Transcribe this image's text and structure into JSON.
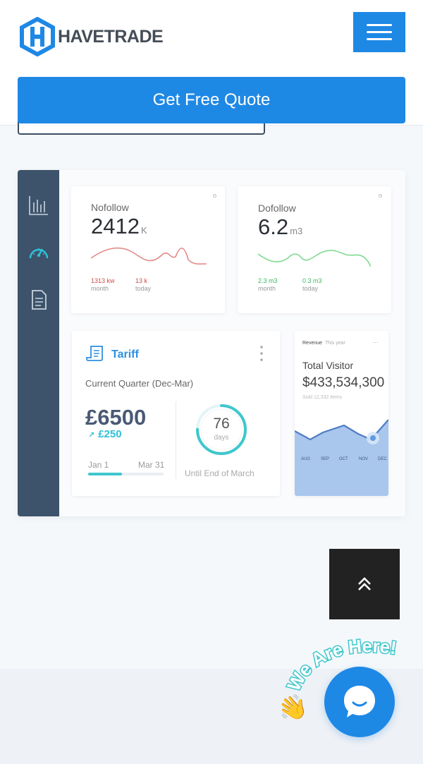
{
  "header": {
    "brand": "HAVETRADE",
    "logo_letter": "H",
    "cta_label": "Get Free Quote",
    "menu_icon": "hamburger-icon"
  },
  "dashboard": {
    "sidebar_icons": [
      "bar-chart-icon",
      "gauge-icon",
      "document-icon"
    ],
    "nofollow": {
      "title": "Nofollow",
      "value": "2412",
      "unit": "K",
      "stats": [
        {
          "value": "1313 kw",
          "label": "month"
        },
        {
          "value": "13 k",
          "label": "today"
        }
      ],
      "color": "#e28a8a"
    },
    "dofollow": {
      "title": "Dofollow",
      "value": "6.2",
      "unit": "m3",
      "stats": [
        {
          "value": "2.3 m3",
          "label": "month"
        },
        {
          "value": "0.3 m3",
          "label": "today"
        }
      ],
      "color": "#7fd98f"
    },
    "tariff": {
      "title": "Tariff",
      "period": "Current Quarter (Dec-Mar)",
      "price": "£6500",
      "delta": "£250",
      "from": "Jan 1",
      "to": "Mar 31",
      "days": "76",
      "days_label": "days",
      "until": "Until End of March",
      "progress": 0.45,
      "days_progress": 0.75
    },
    "revenue": {
      "header": "Revenue",
      "header_sub": "This year",
      "title": "Total Visitor",
      "value": "$433,534,300",
      "sold": "Sold 12,332 items",
      "months": [
        "AUG",
        "SEP",
        "OCT",
        "NOV",
        "DEC"
      ]
    }
  },
  "floating": {
    "scroll_top_icon": "double-chevron-up-icon",
    "chat_icon": "chat-bubble-icon",
    "badge_text": "We Are Here!",
    "wave_emoji": "👋"
  },
  "colors": {
    "primary": "#1e88e5",
    "sidebar": "#3d536b",
    "accent_teal": "#2fc0d6"
  }
}
